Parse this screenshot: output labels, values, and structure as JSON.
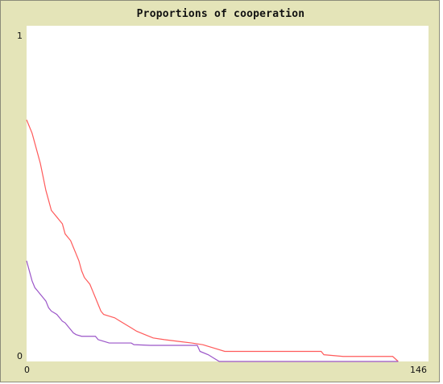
{
  "chart_data": {
    "type": "line",
    "title": "Proportions of cooperation",
    "xlabel": "",
    "ylabel": "",
    "xlim": [
      0,
      146
    ],
    "ylim": [
      0,
      1
    ],
    "x_tick_labels": [
      "0",
      "146"
    ],
    "y_tick_labels": [
      "1",
      "0"
    ],
    "grid": false,
    "legend": "none",
    "series": [
      {
        "color": "#ff5a5a",
        "points": [
          [
            0,
            0.72
          ],
          [
            1,
            0.7
          ],
          [
            2,
            0.68
          ],
          [
            3,
            0.65
          ],
          [
            4,
            0.62
          ],
          [
            5,
            0.59
          ],
          [
            6,
            0.55
          ],
          [
            7,
            0.51
          ],
          [
            8,
            0.48
          ],
          [
            9,
            0.45
          ],
          [
            10,
            0.44
          ],
          [
            11,
            0.43
          ],
          [
            12,
            0.42
          ],
          [
            13,
            0.41
          ],
          [
            14,
            0.38
          ],
          [
            15,
            0.37
          ],
          [
            16,
            0.36
          ],
          [
            17,
            0.34
          ],
          [
            18,
            0.32
          ],
          [
            19,
            0.3
          ],
          [
            20,
            0.27
          ],
          [
            21,
            0.25
          ],
          [
            22,
            0.24
          ],
          [
            23,
            0.23
          ],
          [
            24,
            0.21
          ],
          [
            25,
            0.19
          ],
          [
            26,
            0.17
          ],
          [
            27,
            0.15
          ],
          [
            28,
            0.14
          ],
          [
            30,
            0.135
          ],
          [
            32,
            0.13
          ],
          [
            34,
            0.12
          ],
          [
            36,
            0.11
          ],
          [
            38,
            0.1
          ],
          [
            40,
            0.09
          ],
          [
            43,
            0.08
          ],
          [
            46,
            0.07
          ],
          [
            50,
            0.065
          ],
          [
            55,
            0.06
          ],
          [
            60,
            0.055
          ],
          [
            64,
            0.05
          ],
          [
            68,
            0.04
          ],
          [
            72,
            0.03
          ],
          [
            80,
            0.03
          ],
          [
            100,
            0.03
          ],
          [
            107,
            0.03
          ],
          [
            108,
            0.02
          ],
          [
            115,
            0.015
          ],
          [
            125,
            0.015
          ],
          [
            133,
            0.015
          ],
          [
            135,
            0.0
          ]
        ]
      },
      {
        "color": "#9b55c8",
        "points": [
          [
            0,
            0.3
          ],
          [
            1,
            0.27
          ],
          [
            2,
            0.24
          ],
          [
            3,
            0.22
          ],
          [
            4,
            0.21
          ],
          [
            5,
            0.2
          ],
          [
            6,
            0.19
          ],
          [
            7,
            0.18
          ],
          [
            8,
            0.16
          ],
          [
            9,
            0.15
          ],
          [
            10,
            0.145
          ],
          [
            11,
            0.14
          ],
          [
            12,
            0.13
          ],
          [
            13,
            0.12
          ],
          [
            14,
            0.115
          ],
          [
            15,
            0.105
          ],
          [
            16,
            0.095
          ],
          [
            17,
            0.085
          ],
          [
            18,
            0.08
          ],
          [
            20,
            0.075
          ],
          [
            25,
            0.075
          ],
          [
            26,
            0.065
          ],
          [
            28,
            0.06
          ],
          [
            30,
            0.055
          ],
          [
            38,
            0.055
          ],
          [
            39,
            0.05
          ],
          [
            45,
            0.048
          ],
          [
            50,
            0.048
          ],
          [
            58,
            0.048
          ],
          [
            62,
            0.048
          ],
          [
            63,
            0.03
          ],
          [
            66,
            0.02
          ],
          [
            68,
            0.01
          ],
          [
            70,
            0.0
          ],
          [
            90,
            0.0
          ],
          [
            110,
            0.0
          ],
          [
            135,
            0.0
          ]
        ]
      }
    ]
  }
}
